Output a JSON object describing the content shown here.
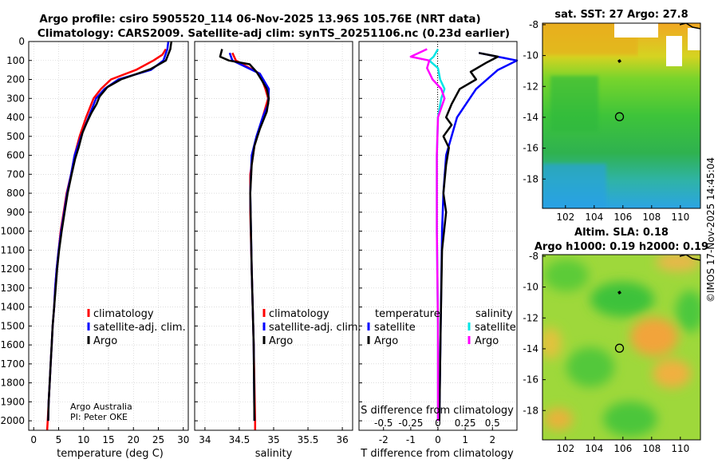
{
  "header": {
    "title_line1": "Argo profile: csiro 5905520_114 06-Nov-2025 13.96S 105.76E (NRT data)",
    "title_line2": "Climatology: CARS2009. Satellite-adj clim: synTS_20251106.nc (0.23d earlier)"
  },
  "credit": {
    "line1": "Argo Australia",
    "line2": "PI: Peter OKE"
  },
  "watermark": "©IMOS 17-Nov-2025 14:45:04",
  "colors": {
    "climatology": "#ff0000",
    "satellite_adj": "#0000ff",
    "argo": "#000000",
    "sat_temp": "#0000ff",
    "sat_sal": "#00e5e5",
    "argo_sal": "#ff00ff"
  },
  "depth_axis": {
    "ylim": [
      0,
      2050
    ],
    "ticks": [
      0,
      100,
      200,
      300,
      400,
      500,
      600,
      700,
      800,
      900,
      1000,
      1100,
      1200,
      1300,
      1400,
      1500,
      1600,
      1700,
      1800,
      1900,
      2000
    ]
  },
  "chart_data": [
    {
      "type": "line",
      "id": "temperature",
      "xlabel": "temperature (deg C)",
      "xlim": [
        -1,
        31
      ],
      "xticks": [
        0,
        5,
        10,
        15,
        20,
        25,
        30
      ],
      "xtick_labels": [
        "0",
        "5",
        "10",
        "15",
        "20",
        "25",
        "30"
      ],
      "legend": {
        "placement": "lower-center",
        "entries": [
          "climatology",
          "satellite-adj. clim.",
          "Argo"
        ]
      },
      "series": [
        {
          "name": "climatology",
          "color": "red",
          "points": [
            [
              26.5,
              40
            ],
            [
              25.8,
              70
            ],
            [
              24,
              100
            ],
            [
              20.5,
              150
            ],
            [
              15.5,
              200
            ],
            [
              13.5,
              250
            ],
            [
              12,
              300
            ],
            [
              10.5,
              400
            ],
            [
              9.2,
              500
            ],
            [
              8.2,
              600
            ],
            [
              7.5,
              700
            ],
            [
              6.6,
              800
            ],
            [
              6,
              900
            ],
            [
              5.4,
              1000
            ],
            [
              5,
              1100
            ],
            [
              4.6,
              1200
            ],
            [
              4.3,
              1300
            ],
            [
              4.1,
              1400
            ],
            [
              3.8,
              1500
            ],
            [
              3.6,
              1600
            ],
            [
              3.4,
              1700
            ],
            [
              3.2,
              1800
            ],
            [
              3,
              1900
            ],
            [
              2.8,
              2000
            ],
            [
              2.7,
              2050
            ]
          ]
        },
        {
          "name": "satellite-adj. clim.",
          "color": "blue",
          "points": [
            [
              27,
              0
            ],
            [
              26.8,
              40
            ],
            [
              26,
              100
            ],
            [
              23.5,
              150
            ],
            [
              17,
              200
            ],
            [
              14.2,
              250
            ],
            [
              12.5,
              300
            ],
            [
              11,
              400
            ],
            [
              9.5,
              500
            ],
            [
              8.2,
              600
            ],
            [
              7.5,
              700
            ],
            [
              6.7,
              800
            ],
            [
              6.1,
              900
            ],
            [
              5.5,
              1000
            ],
            [
              5,
              1100
            ],
            [
              4.6,
              1200
            ],
            [
              4.3,
              1300
            ],
            [
              4.1,
              1400
            ],
            [
              3.8,
              1500
            ],
            [
              3.6,
              1600
            ],
            [
              3.4,
              1700
            ],
            [
              3.2,
              1800
            ],
            [
              3,
              1900
            ],
            [
              2.9,
              2000
            ]
          ]
        },
        {
          "name": "Argo",
          "color": "black",
          "points": [
            [
              27.6,
              0
            ],
            [
              27.4,
              40
            ],
            [
              26.5,
              100
            ],
            [
              23.5,
              145
            ],
            [
              17.5,
              200
            ],
            [
              14.8,
              240
            ],
            [
              13.2,
              290
            ],
            [
              12.6,
              330
            ],
            [
              11.5,
              380
            ],
            [
              10.6,
              430
            ],
            [
              9.8,
              480
            ],
            [
              9,
              560
            ],
            [
              8.3,
              620
            ],
            [
              7.6,
              700
            ],
            [
              6.8,
              800
            ],
            [
              6.2,
              900
            ],
            [
              5.6,
              1000
            ],
            [
              5.1,
              1100
            ],
            [
              4.7,
              1200
            ],
            [
              4.4,
              1300
            ],
            [
              4.1,
              1400
            ],
            [
              3.8,
              1500
            ],
            [
              3.6,
              1600
            ],
            [
              3.4,
              1700
            ],
            [
              3.2,
              1800
            ],
            [
              3,
              1900
            ],
            [
              2.9,
              2000
            ]
          ]
        }
      ]
    },
    {
      "type": "line",
      "id": "salinity",
      "xlabel": "salinity",
      "xlim": [
        33.85,
        36.15
      ],
      "xticks": [
        34,
        34.5,
        35,
        35.5,
        36
      ],
      "xtick_labels": [
        "34",
        "34.5",
        "35",
        "35.5",
        "36"
      ],
      "legend": {
        "placement": "lower-center",
        "entries": [
          "climatology",
          "satellite-adj. clim.",
          "Argo"
        ]
      },
      "series": [
        {
          "name": "climatology",
          "color": "red",
          "points": [
            [
              34.4,
              60
            ],
            [
              34.45,
              100
            ],
            [
              34.8,
              170
            ],
            [
              34.88,
              250
            ],
            [
              34.92,
              300
            ],
            [
              34.88,
              350
            ],
            [
              34.8,
              450
            ],
            [
              34.72,
              550
            ],
            [
              34.66,
              700
            ],
            [
              34.66,
              900
            ],
            [
              34.68,
              1200
            ],
            [
              34.71,
              1600
            ],
            [
              34.73,
              2000
            ],
            [
              34.73,
              2050
            ]
          ]
        },
        {
          "name": "satellite-adj. clim.",
          "color": "blue",
          "points": [
            [
              34.36,
              60
            ],
            [
              34.4,
              100
            ],
            [
              34.8,
              170
            ],
            [
              34.93,
              250
            ],
            [
              34.92,
              330
            ],
            [
              34.84,
              400
            ],
            [
              34.75,
              500
            ],
            [
              34.68,
              600
            ],
            [
              34.66,
              800
            ],
            [
              34.68,
              1200
            ],
            [
              34.71,
              1600
            ],
            [
              34.72,
              2000
            ]
          ]
        },
        {
          "name": "Argo",
          "color": "black",
          "points": [
            [
              34.25,
              40
            ],
            [
              34.22,
              80
            ],
            [
              34.35,
              100
            ],
            [
              34.65,
              120
            ],
            [
              34.75,
              160
            ],
            [
              34.82,
              200
            ],
            [
              34.9,
              250
            ],
            [
              34.93,
              300
            ],
            [
              34.9,
              370
            ],
            [
              34.8,
              460
            ],
            [
              34.72,
              550
            ],
            [
              34.68,
              650
            ],
            [
              34.66,
              800
            ],
            [
              34.68,
              1200
            ],
            [
              34.71,
              1600
            ],
            [
              34.72,
              2000
            ]
          ]
        }
      ]
    },
    {
      "type": "line",
      "id": "difference",
      "xlabel": "T difference from climatology",
      "xlim": [
        -2.9,
        2.9
      ],
      "xticks": [
        -2,
        -1,
        0,
        1,
        2
      ],
      "xtick_labels": [
        "-2",
        "-1",
        "0",
        "1",
        "2"
      ],
      "top_axis": {
        "label": "S difference from climatology",
        "ticks": [
          -0.5,
          -0.25,
          0,
          0.25,
          0.5
        ],
        "tick_labels": [
          "-0.5",
          "-0.25",
          "0",
          "0.25",
          "0.5"
        ]
      },
      "legend": {
        "placement": "lower",
        "temp_title": "temperature",
        "sal_title": "salinity",
        "entries": [
          "satellite",
          "Argo",
          "satellite",
          "Argo"
        ]
      },
      "series": [
        {
          "name": "temperature satellite",
          "color": "blue",
          "points": [
            [
              1.5,
              60
            ],
            [
              2.9,
              100
            ],
            [
              2.2,
              150
            ],
            [
              1.4,
              250
            ],
            [
              0.7,
              400
            ],
            [
              0.3,
              600
            ],
            [
              0.2,
              800
            ],
            [
              0.15,
              1000
            ],
            [
              0.1,
              1500
            ],
            [
              0.05,
              2000
            ]
          ]
        },
        {
          "name": "temperature Argo",
          "color": "black",
          "points": [
            [
              1.5,
              60
            ],
            [
              2.2,
              80
            ],
            [
              1.8,
              110
            ],
            [
              1.2,
              160
            ],
            [
              1.4,
              200
            ],
            [
              0.8,
              250
            ],
            [
              0.5,
              330
            ],
            [
              0.3,
              400
            ],
            [
              0.5,
              440
            ],
            [
              0.2,
              500
            ],
            [
              0.4,
              560
            ],
            [
              0.3,
              650
            ],
            [
              0.2,
              800
            ],
            [
              0.3,
              900
            ],
            [
              0.15,
              1100
            ],
            [
              0.1,
              1500
            ],
            [
              0.05,
              2000
            ]
          ]
        },
        {
          "name": "salinity satellite",
          "color": "cyan",
          "sal_points": [
            [
              0,
              40
            ],
            [
              -0.04,
              80
            ],
            [
              -0.08,
              100
            ],
            [
              0,
              140
            ],
            [
              0.02,
              200
            ],
            [
              0.06,
              250
            ],
            [
              0.03,
              300
            ],
            [
              0,
              400
            ],
            [
              -0.01,
              600
            ],
            [
              -0.01,
              1000
            ],
            [
              0,
              1500
            ],
            [
              0,
              2000
            ]
          ]
        },
        {
          "name": "salinity Argo",
          "color": "magenta",
          "sal_points": [
            [
              -0.1,
              40
            ],
            [
              -0.25,
              80
            ],
            [
              -0.08,
              100
            ],
            [
              -0.1,
              140
            ],
            [
              -0.05,
              200
            ],
            [
              0.03,
              250
            ],
            [
              0.06,
              300
            ],
            [
              0,
              400
            ],
            [
              -0.01,
              600
            ],
            [
              -0.01,
              1000
            ],
            [
              0,
              1500
            ],
            [
              0,
              2000
            ]
          ]
        }
      ]
    },
    {
      "type": "heatmap",
      "id": "sst_map",
      "title": "sat. SST: 27 Argo: 27.8",
      "xlim": [
        100.4,
        111.4
      ],
      "ylim": [
        -19.9,
        -7.9
      ],
      "xticks": [
        102,
        104,
        106,
        108,
        110
      ],
      "yticks": [
        -8,
        -10,
        -12,
        -14,
        -16,
        -18
      ],
      "profile_location": [
        105.76,
        -13.96
      ]
    },
    {
      "type": "heatmap",
      "id": "sla_map",
      "title_line1": "Altim. SLA: 0.18",
      "title_line2": "Argo h1000: 0.19 h2000: 0.19",
      "xlim": [
        100.4,
        111.4
      ],
      "ylim": [
        -19.9,
        -7.9
      ],
      "xticks": [
        102,
        104,
        106,
        108,
        110
      ],
      "yticks": [
        -8,
        -10,
        -12,
        -14,
        -16,
        -18
      ],
      "profile_location": [
        105.76,
        -13.96
      ]
    }
  ]
}
